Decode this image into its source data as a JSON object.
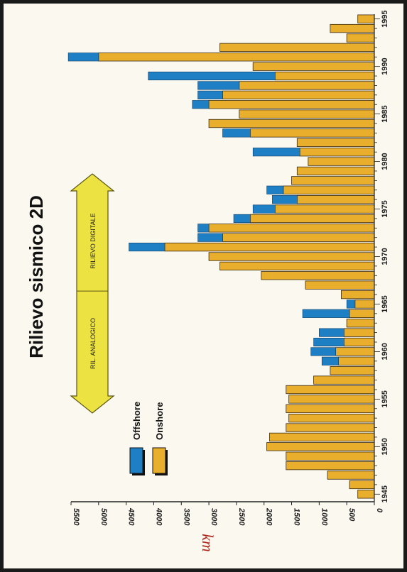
{
  "chart_data": {
    "type": "bar",
    "orientation": "horizontal",
    "stacked": true,
    "title": "Rilievo sismico 2D",
    "ylabel": "km",
    "ylim": [
      0,
      5500
    ],
    "yticks": [
      0,
      500,
      1000,
      1500,
      2000,
      2500,
      3000,
      3500,
      4000,
      4500,
      5000,
      5500
    ],
    "xticks": [
      1945,
      1950,
      1955,
      1960,
      1965,
      1970,
      1975,
      1980,
      1985,
      1990,
      1995
    ],
    "categories": [
      1945,
      1946,
      1947,
      1948,
      1949,
      1950,
      1951,
      1952,
      1953,
      1954,
      1955,
      1956,
      1957,
      1958,
      1959,
      1960,
      1961,
      1962,
      1963,
      1964,
      1965,
      1966,
      1967,
      1968,
      1969,
      1970,
      1971,
      1972,
      1973,
      1974,
      1975,
      1976,
      1977,
      1978,
      1979,
      1980,
      1981,
      1982,
      1983,
      1984,
      1985,
      1986,
      1987,
      1988,
      1989,
      1990,
      1991,
      1992,
      1993,
      1994,
      1995
    ],
    "series": [
      {
        "name": "Onshore",
        "color": "#e8ae2c",
        "values": [
          300,
          450,
          850,
          1600,
          1600,
          1950,
          1900,
          1600,
          1550,
          1600,
          1550,
          1600,
          1100,
          800,
          650,
          700,
          550,
          550,
          500,
          450,
          350,
          600,
          1250,
          2050,
          2800,
          3000,
          3800,
          2750,
          3000,
          2250,
          1800,
          1400,
          1650,
          1500,
          1400,
          1200,
          1350,
          1400,
          2250,
          3000,
          2450,
          3000,
          2750,
          2450,
          1800,
          2200,
          5000,
          2800,
          500,
          800,
          300
        ]
      },
      {
        "name": "Offshore",
        "color": "#1f7fc4",
        "values": [
          0,
          0,
          0,
          0,
          0,
          0,
          0,
          0,
          0,
          0,
          0,
          0,
          0,
          0,
          300,
          450,
          550,
          450,
          0,
          850,
          150,
          0,
          0,
          0,
          0,
          0,
          650,
          450,
          200,
          300,
          400,
          450,
          300,
          0,
          0,
          0,
          850,
          0,
          500,
          0,
          0,
          300,
          450,
          750,
          2300,
          0,
          550,
          0,
          0,
          0,
          0
        ]
      }
    ],
    "legend": {
      "position": "top-left"
    },
    "annotation": {
      "left_label": "RIL. ANALOGICO",
      "right_label": "RILIEVO DIGITALE",
      "divider_year": 1966
    }
  }
}
